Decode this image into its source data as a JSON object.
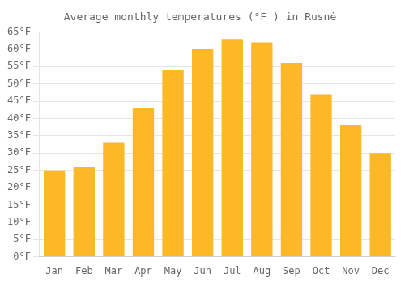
{
  "chart_data": {
    "type": "bar",
    "title": "Average monthly temperatures (°F ) in Rusnė",
    "categories": [
      "Jan",
      "Feb",
      "Mar",
      "Apr",
      "May",
      "Jun",
      "Jul",
      "Aug",
      "Sep",
      "Oct",
      "Nov",
      "Dec"
    ],
    "values": [
      25,
      26,
      33,
      43,
      54,
      60,
      63,
      62,
      56,
      47,
      38,
      30
    ],
    "color": "#FDB827",
    "ylim": [
      0,
      65
    ],
    "yticks": [
      {
        "value": 0,
        "label": "0°F"
      },
      {
        "value": 5,
        "label": "5°F"
      },
      {
        "value": 10,
        "label": "10°F"
      },
      {
        "value": 15,
        "label": "15°F"
      },
      {
        "value": 20,
        "label": "20°F"
      },
      {
        "value": 25,
        "label": "25°F"
      },
      {
        "value": 30,
        "label": "30°F"
      },
      {
        "value": 35,
        "label": "35°F"
      },
      {
        "value": 40,
        "label": "40°F"
      },
      {
        "value": 45,
        "label": "45°F"
      },
      {
        "value": 50,
        "label": "50°F"
      },
      {
        "value": 55,
        "label": "55°F"
      },
      {
        "value": 60,
        "label": "60°F"
      },
      {
        "value": 65,
        "label": "65°F"
      }
    ],
    "grid": true
  }
}
